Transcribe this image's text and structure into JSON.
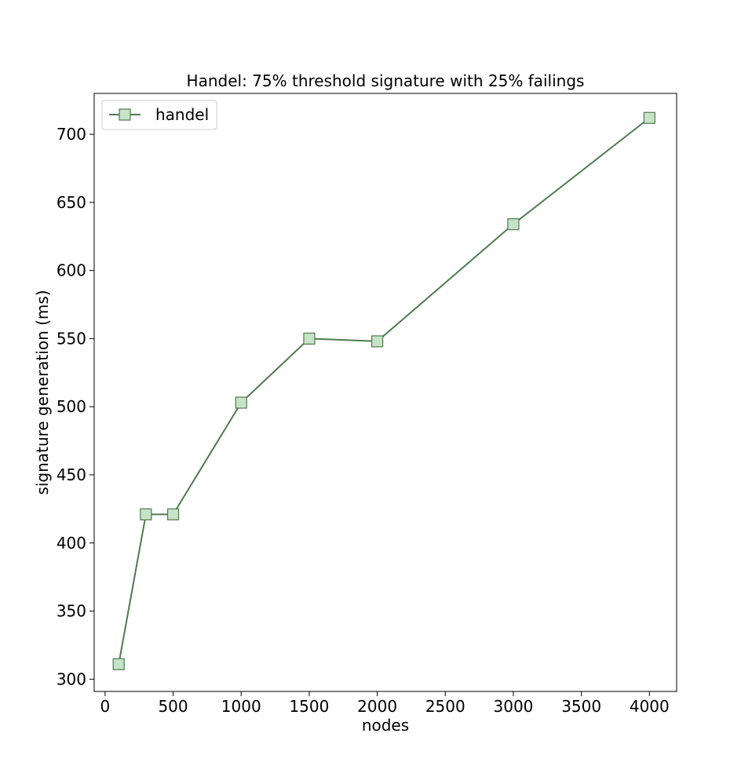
{
  "chart_data": {
    "type": "line",
    "title": "Handel: 75% threshold signature with 25% failings",
    "xlabel": "nodes",
    "ylabel": "signature generation (ms)",
    "xlim": [
      -80,
      4200
    ],
    "ylim": [
      291,
      730
    ],
    "xticks": [
      0,
      500,
      1000,
      1500,
      2000,
      2500,
      3000,
      3500,
      4000
    ],
    "yticks": [
      300,
      350,
      400,
      450,
      500,
      550,
      600,
      650,
      700
    ],
    "grid": false,
    "legend_position": "top-left",
    "series": [
      {
        "name": "handel",
        "line_color": "#4f7a50",
        "marker": "square",
        "marker_fill": "#c5e3c6",
        "marker_edge": "#4f7a50",
        "x": [
          100,
          300,
          500,
          1000,
          1500,
          2000,
          3000,
          4000
        ],
        "y": [
          311,
          421,
          421,
          503,
          550,
          548,
          634,
          712
        ]
      }
    ]
  }
}
